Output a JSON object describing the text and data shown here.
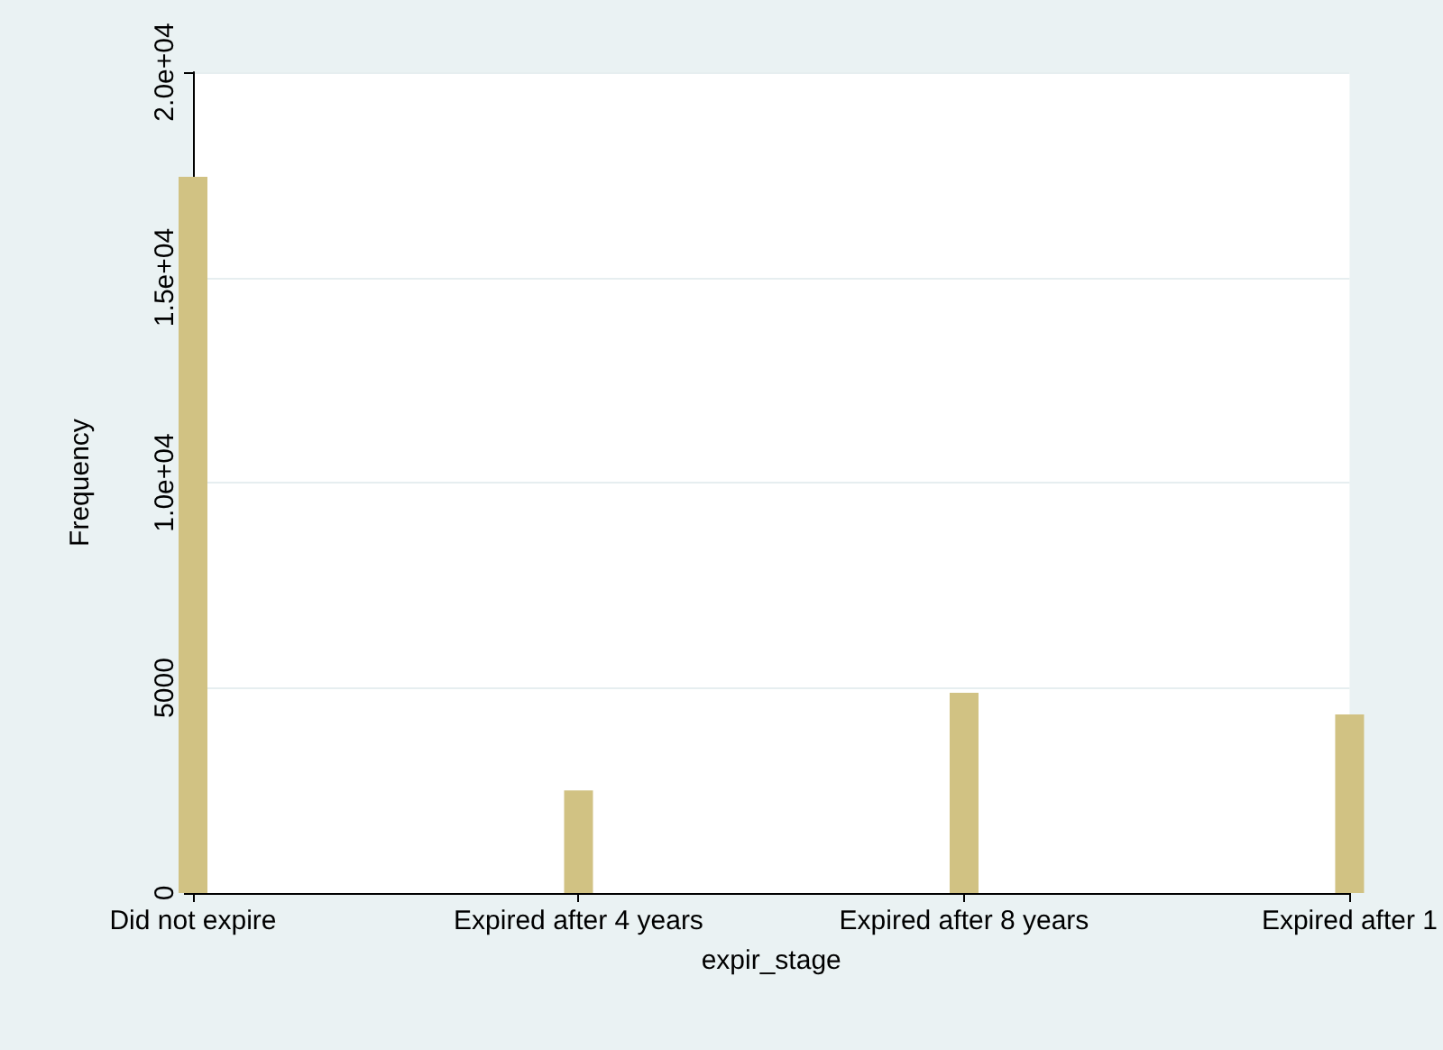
{
  "chart_data": {
    "type": "bar",
    "xlabel": "expir_stage",
    "ylabel": "Frequency",
    "categories": [
      "Did not expire",
      "Expired after 4 years",
      "Expired after 8 years",
      "Expired after 1"
    ],
    "values": [
      17450,
      2500,
      4880,
      4350
    ],
    "color": "#d1c283",
    "ylim": [
      0,
      20000
    ],
    "yticks": [
      0,
      5000,
      {
        "value": 10000,
        "label": "1.0e+04"
      },
      {
        "value": 15000,
        "label": "1.5e+04"
      },
      {
        "value": 20000,
        "label": "2.0e+04"
      }
    ],
    "grid": "y"
  }
}
